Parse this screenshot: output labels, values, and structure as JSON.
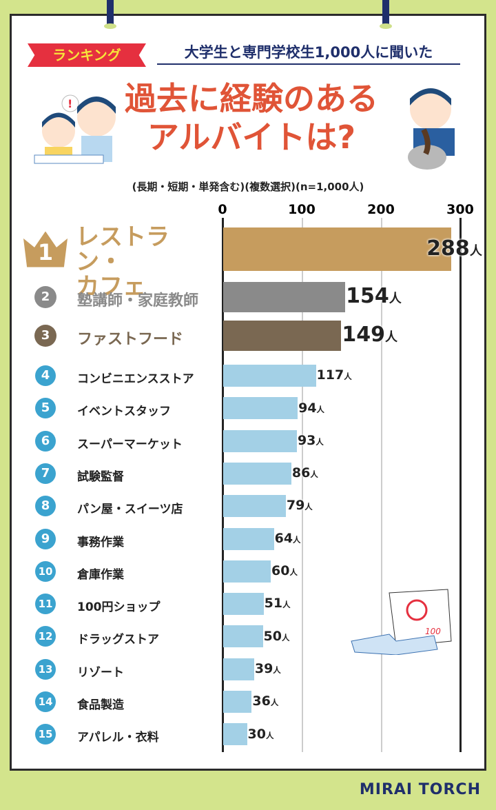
{
  "header": {
    "ribbon": "ランキング",
    "survey": "大学生と専門学校生1,000人に聞いた",
    "title_line1": "過去に経験のある",
    "title_line2": "アルバイトは?",
    "subtitle": "(長期・短期・単発含む)(複数選択)(n=1,000人)"
  },
  "logo": "MIRAI TORCH",
  "colors": {
    "rank1": "#c69c5e",
    "rank2": "#8a8a8a",
    "rank3": "#7a6852",
    "other": "#a3d0e6",
    "circle": "#3ba3cf"
  },
  "chart_data": {
    "type": "bar",
    "orientation": "horizontal",
    "title": "過去に経験のあるアルバイトは?",
    "unit": "人",
    "xlim": [
      0,
      300
    ],
    "xticks": [
      0,
      100,
      200,
      300
    ],
    "categories": [
      "レストラン・カフェ",
      "塾講師・家庭教師",
      "ファストフード",
      "コンビニエンスストア",
      "イベントスタッフ",
      "スーパーマーケット",
      "試験監督",
      "パン屋・スイーツ店",
      "事務作業",
      "倉庫作業",
      "100円ショップ",
      "ドラッグストア",
      "リゾート",
      "食品製造",
      "アパレル・衣料"
    ],
    "ranks": [
      "1",
      "2",
      "3",
      "4",
      "5",
      "6",
      "7",
      "8",
      "9",
      "10",
      "11",
      "12",
      "13",
      "14",
      "15"
    ],
    "values": [
      288,
      154,
      149,
      117,
      94,
      93,
      86,
      79,
      64,
      60,
      51,
      50,
      39,
      36,
      30
    ]
  }
}
